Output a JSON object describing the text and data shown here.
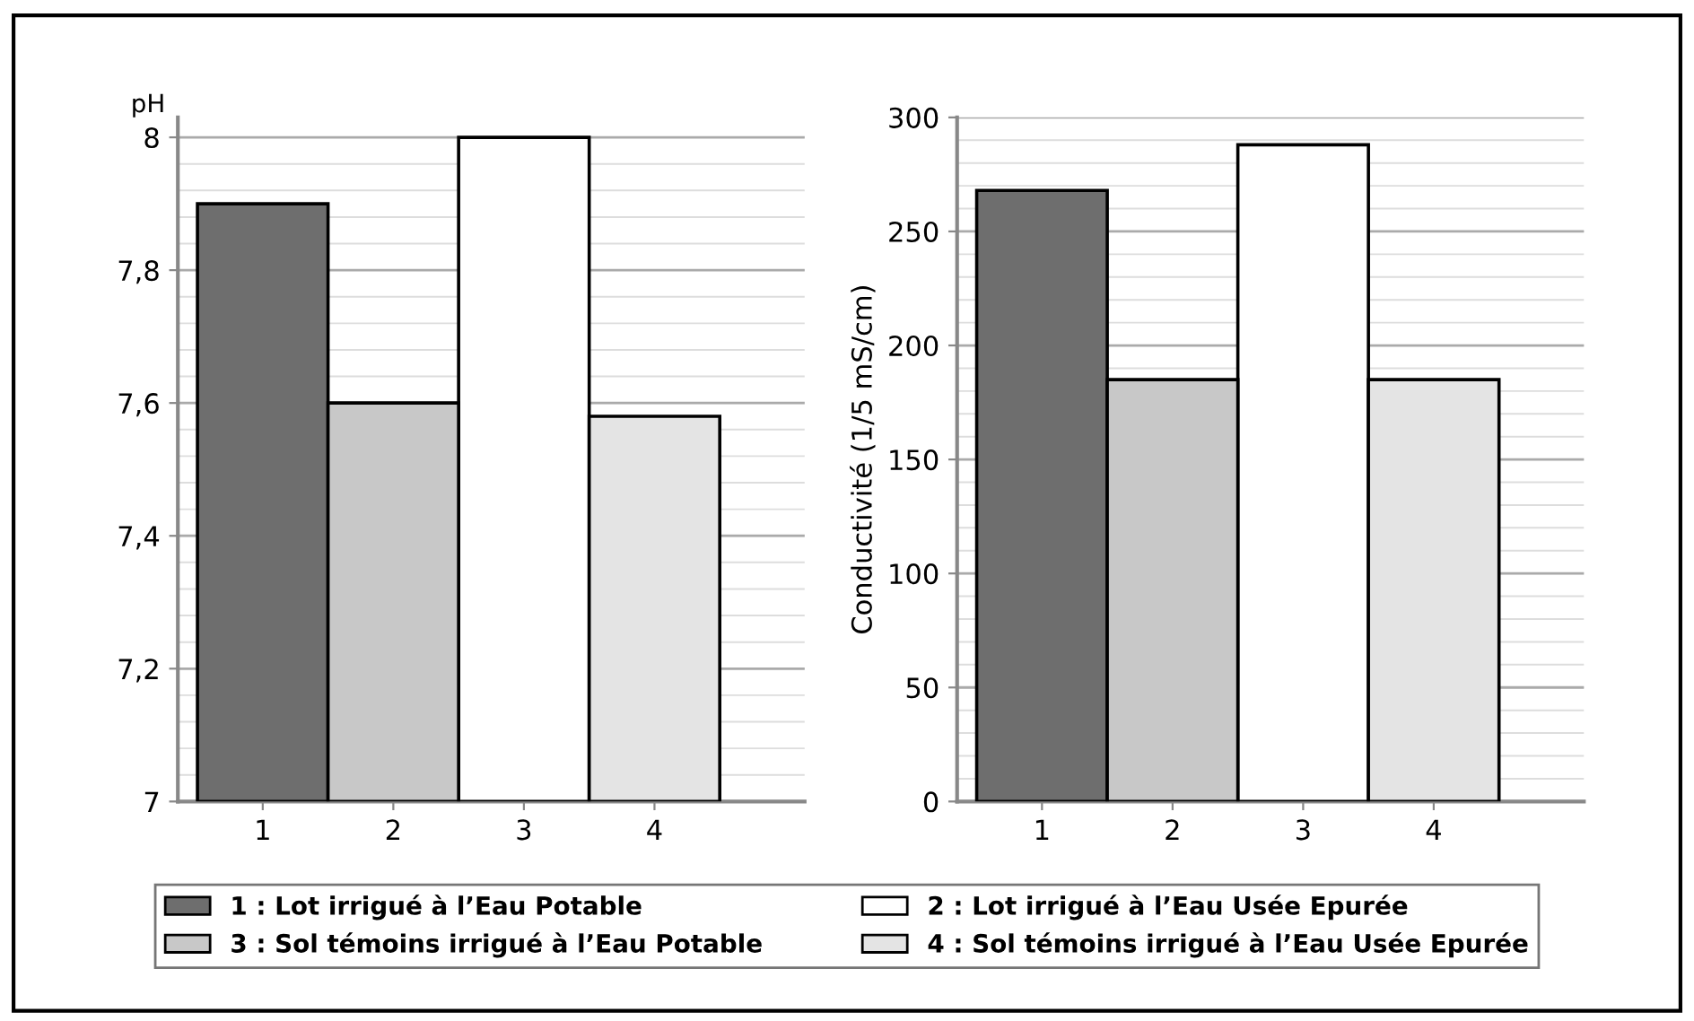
{
  "chart_data": [
    {
      "type": "bar",
      "ylabel": "pH",
      "categories": [
        "1",
        "2",
        "3",
        "4"
      ],
      "series": [
        {
          "name": "1 : Lot irrigué à l’Eau Potable",
          "color": "#6e6e6e",
          "values": [
            7.9,
            null,
            null,
            null
          ]
        },
        {
          "name": "2 : Lot irrigué à l’Eau Usée Epurée",
          "color": "#ffffff",
          "values": [
            null,
            null,
            8.0,
            null
          ]
        },
        {
          "name": "3 : Sol témoins irrigué à l’Eau Potable",
          "color": "#c8c8c8",
          "values": [
            null,
            7.6,
            null,
            null
          ]
        },
        {
          "name": "4 : Sol témoins irrigué à l’Eau Usée Epurée",
          "color": "#e4e4e4",
          "values": [
            null,
            null,
            null,
            7.58
          ]
        }
      ],
      "ylim": [
        7,
        8.03
      ],
      "yticks": [
        7,
        {
          "value": 7.2,
          "label": "7,2"
        },
        {
          "value": 7.4,
          "label": "7,4"
        },
        {
          "value": 7.6,
          "label": "7,6"
        },
        {
          "value": 7.8,
          "label": "7,8"
        },
        8
      ],
      "grid": "y",
      "legend": "bottom"
    },
    {
      "type": "bar",
      "ylabel": "Conductivité (1/5 mS/cm)",
      "categories": [
        "1",
        "2",
        "3",
        "4"
      ],
      "series": [
        {
          "color": "#6e6e6e",
          "values": [
            268,
            null,
            null,
            null
          ]
        },
        {
          "color": "#ffffff",
          "values": [
            null,
            null,
            288,
            null
          ]
        },
        {
          "color": "#c8c8c8",
          "values": [
            null,
            185,
            null,
            null
          ]
        },
        {
          "color": "#e4e4e4",
          "values": [
            null,
            null,
            null,
            185
          ]
        }
      ],
      "ylim": [
        0,
        300
      ],
      "yticks": [
        0,
        50,
        100,
        150,
        200,
        250,
        300
      ],
      "grid": "y"
    }
  ]
}
